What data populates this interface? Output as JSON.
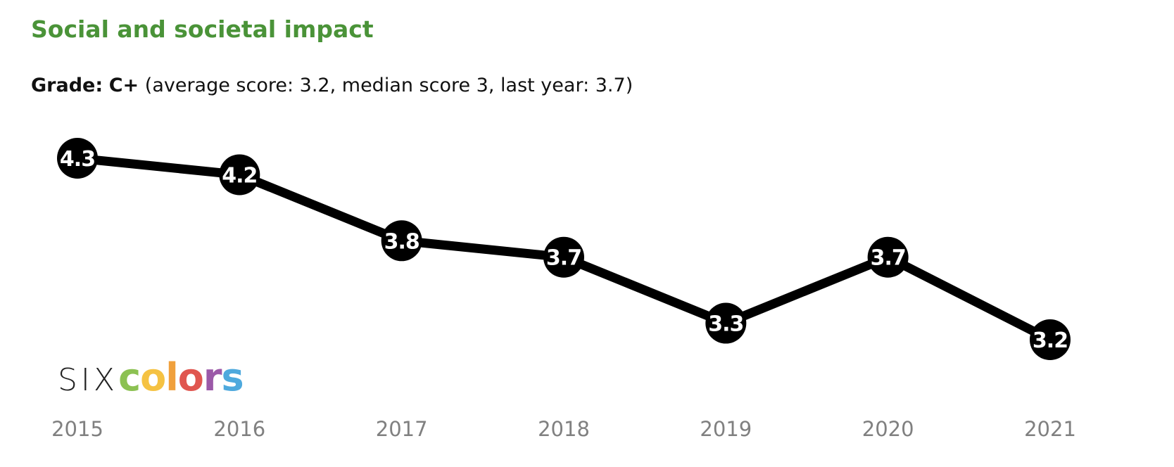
{
  "title": "Social and societal impact",
  "grade": {
    "label": "Grade:",
    "value": "C+",
    "details": "(average score: 3.2, median score 3, last year: 3.7)"
  },
  "logo": {
    "prefix": "SIX",
    "letters": [
      {
        "char": "c",
        "color": "#8cc152"
      },
      {
        "char": "o",
        "color": "#f5c242"
      },
      {
        "char": "l",
        "color": "#f0a03c"
      },
      {
        "char": "o",
        "color": "#e0564f"
      },
      {
        "char": "r",
        "color": "#9b59a8"
      },
      {
        "char": "s",
        "color": "#4ea9dd"
      }
    ]
  },
  "chart_data": {
    "type": "line",
    "categories": [
      "2015",
      "2016",
      "2017",
      "2018",
      "2019",
      "2020",
      "2021"
    ],
    "values": [
      4.3,
      4.2,
      3.8,
      3.7,
      3.3,
      3.7,
      3.2
    ],
    "value_labels": [
      "4.3",
      "4.2",
      "3.8",
      "3.7",
      "3.3",
      "3.7",
      "3.2"
    ],
    "line_color": "#000000",
    "marker_color": "#000000",
    "label_color": "#ffffff",
    "tick_color": "#808080",
    "grid": false,
    "legend": "none"
  }
}
